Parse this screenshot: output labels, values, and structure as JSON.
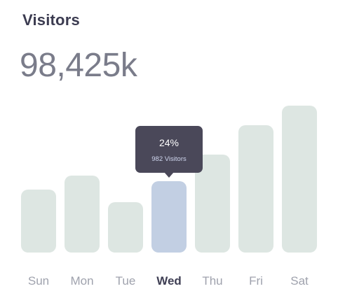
{
  "header": {
    "title": "Visitors",
    "total": "98,425k"
  },
  "chart_data": {
    "type": "bar",
    "categories": [
      "Sun",
      "Mon",
      "Tue",
      "Wed",
      "Thu",
      "Fri",
      "Sat"
    ],
    "values": [
      45,
      55,
      36,
      51,
      70,
      91,
      105
    ],
    "active_index": 3,
    "ylim": [
      0,
      105
    ],
    "grid": false,
    "colors": {
      "bar": "#dde6e2",
      "active_bar": "#c2cfe3",
      "tooltip": "#4a4859",
      "active_label": "#3f3f54",
      "label": "#9fa2ad"
    }
  },
  "tooltip": {
    "percent": "24%",
    "visitors": "982 Visitors"
  }
}
